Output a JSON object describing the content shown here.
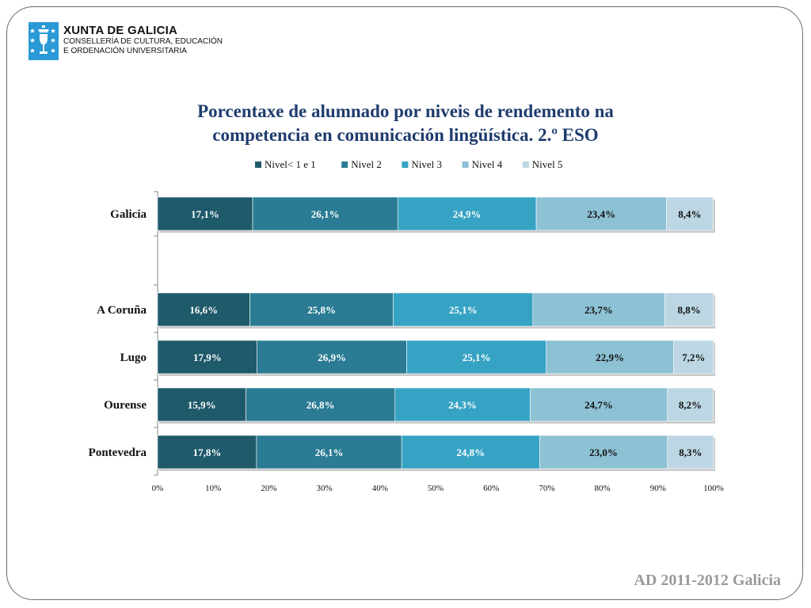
{
  "header": {
    "org_line1": "XUNTA DE GALICIA",
    "org_line2": "CONSELLERÍA DE CULTURA, EDUCACIÓN",
    "org_line3": "E ORDENACIÓN UNIVERSITARIA",
    "logo_icon": "xunta-shield-icon",
    "logo_color": "#2a9ad6"
  },
  "footer": {
    "text": "AD 2011-2012 Galicia"
  },
  "chart_data": {
    "type": "bar",
    "orientation": "horizontal",
    "stacked": "percent",
    "title": "Porcentaxe de alumnado por niveis de rendemento na competencia en comunicación lingüística. 2.º ESO",
    "title_lines": [
      "Porcentaxe de alumnado por niveis de rendemento na",
      "competencia en comunicación lingüística. 2.º ESO"
    ],
    "categories": [
      "Galicia",
      "",
      "A Coruña",
      "Lugo",
      "Ourense",
      "Pontevedra"
    ],
    "series": [
      {
        "name": "Nivel< 1 e 1",
        "color": "#1f5a6b",
        "values": [
          17.1,
          null,
          16.6,
          17.9,
          15.9,
          17.8
        ],
        "labels": [
          "17,1%",
          "",
          "16,6%",
          "17,9%",
          "15,9%",
          "17,8%"
        ]
      },
      {
        "name": "Nivel 2",
        "color": "#2a7b93",
        "values": [
          26.1,
          null,
          25.8,
          26.9,
          26.8,
          26.1
        ],
        "labels": [
          "26,1%",
          "",
          "25,8%",
          "26,9%",
          "26,8%",
          "26,1%"
        ]
      },
      {
        "name": "Nivel 3",
        "color": "#36a3c4",
        "values": [
          24.9,
          null,
          25.1,
          25.1,
          24.3,
          24.8
        ],
        "labels": [
          "24,9%",
          "",
          "25,1%",
          "25,1%",
          "24,3%",
          "24,8%"
        ]
      },
      {
        "name": "Nivel 4",
        "color": "#8dc1d4",
        "values": [
          23.4,
          null,
          23.7,
          22.9,
          24.7,
          23.0
        ],
        "labels": [
          "23,4%",
          "",
          "23,7%",
          "22,9%",
          "24,7%",
          "23,0%"
        ]
      },
      {
        "name": "Nivel 5",
        "color": "#bcd7e3",
        "values": [
          8.4,
          null,
          8.8,
          7.2,
          8.2,
          8.3
        ],
        "labels": [
          "8,4%",
          "",
          "8,8%",
          "7,2%",
          "8,2%",
          "8,3%"
        ]
      }
    ],
    "xlim": [
      0,
      100
    ],
    "xticks": [
      "0%",
      "10%",
      "20%",
      "30%",
      "40%",
      "50%",
      "60%",
      "70%",
      "80%",
      "90%",
      "100%"
    ],
    "legend_position": "top",
    "grid": false
  }
}
